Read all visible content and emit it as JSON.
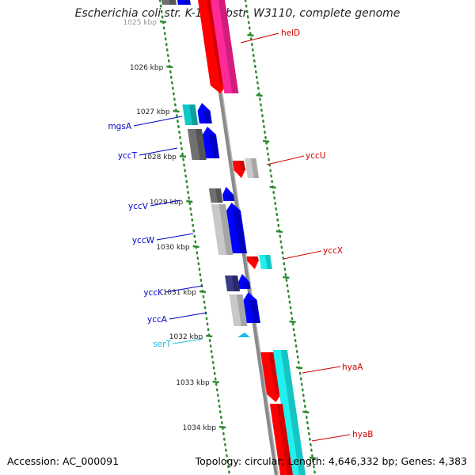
{
  "header": {
    "title": "Escherichia coli str. K-12 substr. W3110, complete genome"
  },
  "footer": {
    "accession": "Accession: AC_000091",
    "summary": "Topology: circular; Length: 4,646,332 bp; Genes: 4,383"
  },
  "colors": {
    "backbone": "#8a8a8a",
    "tick_dots": "#2e8b2e",
    "forward_label": "#0000c8",
    "reverse_label": "#cc0000",
    "trna_label": "#20b8e0"
  },
  "ticks": [
    {
      "label": "1025 kbp"
    },
    {
      "label": "1026 kbp"
    },
    {
      "label": "1027 kbp"
    },
    {
      "label": "1028 kbp"
    },
    {
      "label": "1029 kbp"
    },
    {
      "label": "1030 kbp"
    },
    {
      "label": "1031 kbp"
    },
    {
      "label": "1032 kbp"
    },
    {
      "label": "1033 kbp"
    },
    {
      "label": "1034 kbp"
    }
  ],
  "gene_labels": [
    {
      "name": "helD",
      "strand": "reverse"
    },
    {
      "name": "yccU",
      "strand": "reverse"
    },
    {
      "name": "yccX",
      "strand": "reverse"
    },
    {
      "name": "hyaA",
      "strand": "reverse"
    },
    {
      "name": "hyaB",
      "strand": "reverse"
    },
    {
      "name": "mgsA",
      "strand": "forward"
    },
    {
      "name": "yccT",
      "strand": "forward"
    },
    {
      "name": "yccV",
      "strand": "forward"
    },
    {
      "name": "yccW",
      "strand": "forward"
    },
    {
      "name": "yccK",
      "strand": "forward"
    },
    {
      "name": "yccA",
      "strand": "forward"
    },
    {
      "name": "serT",
      "strand": "trna"
    }
  ]
}
